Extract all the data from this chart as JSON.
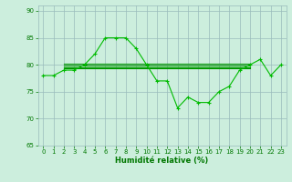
{
  "x": [
    0,
    1,
    2,
    3,
    4,
    5,
    6,
    7,
    8,
    9,
    10,
    11,
    12,
    13,
    14,
    15,
    16,
    17,
    18,
    19,
    20,
    21,
    22,
    23
  ],
  "y_main": [
    78,
    78,
    79,
    79,
    80,
    82,
    85,
    85,
    85,
    83,
    80,
    77,
    77,
    72,
    74,
    73,
    73,
    75,
    76,
    79,
    80,
    81,
    78,
    80
  ],
  "avg_lines": [
    {
      "x_start": 2,
      "x_end": 20,
      "y": 79.3
    },
    {
      "x_start": 2,
      "x_end": 20,
      "y": 79.6
    },
    {
      "x_start": 2,
      "x_end": 20,
      "y": 79.9
    },
    {
      "x_start": 2,
      "x_end": 20,
      "y": 80.2
    }
  ],
  "line_color": "#00bb00",
  "avg_color": "#009900",
  "bg_color": "#cceedd",
  "grid_color": "#99bbbb",
  "xlabel": "Humidité relative (%)",
  "ylim": [
    65,
    91
  ],
  "xlim": [
    -0.5,
    23.5
  ],
  "yticks": [
    65,
    70,
    75,
    80,
    85,
    90
  ],
  "xticks": [
    0,
    1,
    2,
    3,
    4,
    5,
    6,
    7,
    8,
    9,
    10,
    11,
    12,
    13,
    14,
    15,
    16,
    17,
    18,
    19,
    20,
    21,
    22,
    23
  ],
  "xlabel_fontsize": 6,
  "tick_labelsize": 5,
  "tick_color": "#007700"
}
